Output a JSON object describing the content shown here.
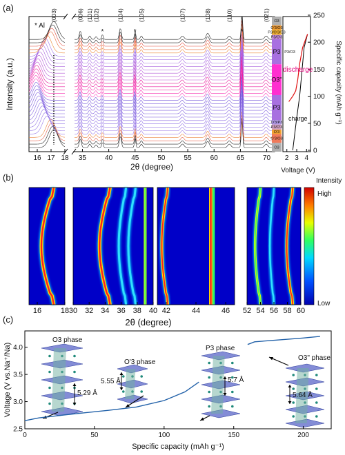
{
  "figure": {
    "panel_a_label": "(a)",
    "panel_b_label": "(b)",
    "panel_c_label": "(c)"
  },
  "chart_data": [
    {
      "panel": "(a)",
      "type": "line",
      "xlabel": "2θ (degree)",
      "ylabel": "Intensity (a.u.)",
      "x_ticks": [
        "16",
        "17",
        "18",
        "35",
        "40",
        "45",
        "50",
        "55",
        "60",
        "65",
        "70"
      ],
      "peak_labels": [
        "(003)",
        "(006)",
        "(101)",
        "(102)",
        "(104)",
        "(105)",
        "(107)",
        "(108)",
        "(110)",
        "(021)"
      ],
      "peak_positions": [
        17.2,
        34.6,
        36.4,
        37.6,
        42.2,
        46.2,
        54.0,
        58.8,
        62.9,
        69.9
      ],
      "al_marker": "* Al",
      "al_star": "*",
      "al_positions": [
        38.8,
        45.0,
        65.3
      ],
      "pattern_count": 33,
      "phase_labels": [
        "O3",
        "O'3/O3",
        "P3/O'3/O3",
        "P3/O'3",
        "P3",
        "O3\"",
        "P3",
        "O'3/P3",
        "P3/O'3",
        "O'3",
        "O'3/O3",
        "O3"
      ],
      "phase_colors": [
        "#b0b0b0",
        "#f09a30",
        "#f0b030",
        "#c08ad8",
        "#a870e0",
        "#ff30d0",
        "#a870e0",
        "#b098e8",
        "#d0a0c0",
        "#f0a030",
        "#f07a5a",
        "#b0b0b0"
      ],
      "side_label_p3_o3": "P3/O3",
      "voltage_panel": {
        "xlabel": "Voltage (V)",
        "x_ticks": [
          "2",
          "3",
          "4"
        ],
        "ylabel": "Specific capacity (mAh g⁻¹)",
        "y_ticks": [
          "0",
          "50",
          "100",
          "150",
          "200",
          "250"
        ],
        "y_range": [
          0,
          250
        ],
        "charge_label": "charge",
        "discharge_label": "discharge",
        "charge_points": [
          [
            2.6,
            0
          ],
          [
            2.8,
            30
          ],
          [
            3.0,
            60
          ],
          [
            3.3,
            100
          ],
          [
            3.5,
            140
          ],
          [
            3.75,
            190
          ],
          [
            4.1,
            215
          ]
        ],
        "discharge_points": [
          [
            4.1,
            215
          ],
          [
            3.6,
            190
          ],
          [
            3.3,
            160
          ],
          [
            3.1,
            130
          ],
          [
            2.9,
            110
          ],
          [
            2.6,
            100
          ],
          [
            2.2,
            90
          ]
        ]
      }
    },
    {
      "panel": "(b)",
      "type": "heatmap",
      "xlabel": "2θ (degree)",
      "segments": [
        {
          "ticks": [
            "16",
            "18"
          ],
          "range": [
            15.4,
            18.0
          ]
        },
        {
          "ticks": [
            "30",
            "32",
            "34",
            "36",
            "38",
            "40"
          ],
          "range": [
            30.0,
            40.0
          ]
        },
        {
          "ticks": [
            "42",
            "44",
            "46"
          ],
          "range": [
            41.4,
            46.6
          ]
        },
        {
          "ticks": [
            "52",
            "54",
            "56",
            "58",
            "60"
          ],
          "range": [
            52.0,
            60.0
          ]
        }
      ],
      "tick_16": "16",
      "colorbar": {
        "title": "Intensity",
        "high": "High",
        "low": "Low"
      }
    },
    {
      "panel": "(c)",
      "type": "line",
      "xlabel": "Specific capacity (mAh g⁻¹)",
      "ylabel": "Voltage (V vs.Na⁺/Na)",
      "x_ticks": [
        "0",
        "50",
        "100",
        "150",
        "200"
      ],
      "y_ticks": [
        "2.5",
        "3.0",
        "3.5",
        "4.0"
      ],
      "xlim": [
        0,
        220
      ],
      "ylim": [
        2.5,
        4.3
      ],
      "series": [
        {
          "values": [
            [
              0,
              2.65
            ],
            [
              10,
              2.7
            ],
            [
              30,
              2.76
            ],
            [
              60,
              2.84
            ],
            [
              80,
              2.9
            ],
            [
              100,
              3.02
            ],
            [
              115,
              3.18
            ],
            [
              125,
              3.36
            ]
          ]
        },
        {
          "values": [
            [
              160,
              4.05
            ],
            [
              165,
              4.1
            ],
            [
              180,
              4.13
            ],
            [
              200,
              4.17
            ],
            [
              212,
              4.2
            ]
          ]
        }
      ],
      "annotations": {
        "o3_phase": "O3 phase",
        "o3_dist": "5.29 Å",
        "op3_phase": "O'3 phase",
        "op3_dist": "5.55 Å",
        "p3_phase": "P3 phase",
        "p3_dist": "5.7 Å",
        "o3pp_phase": "O3\" phase",
        "o3pp_dist": "5.64 Å"
      }
    }
  ]
}
